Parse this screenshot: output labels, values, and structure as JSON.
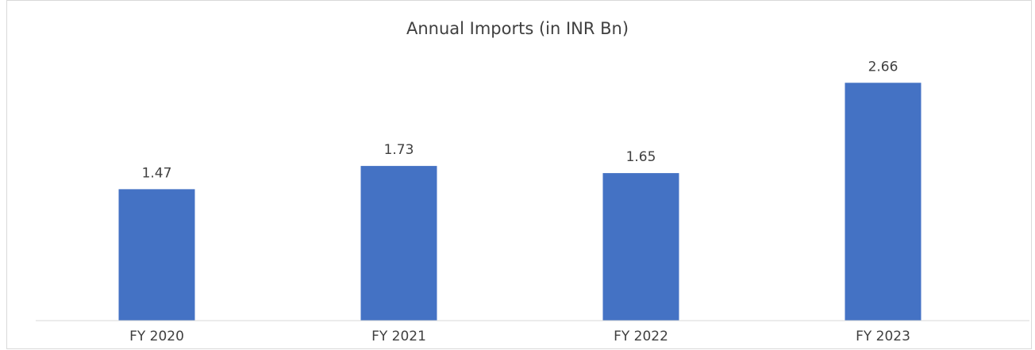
{
  "chart_data": {
    "type": "bar",
    "title": "Annual Imports (in INR Bn)",
    "categories": [
      "FY 2020",
      "FY 2021",
      "FY 2022",
      "FY 2023"
    ],
    "values": [
      1.47,
      1.73,
      1.65,
      2.66
    ],
    "color": "#4472c4",
    "ylim": [
      0,
      3
    ]
  }
}
